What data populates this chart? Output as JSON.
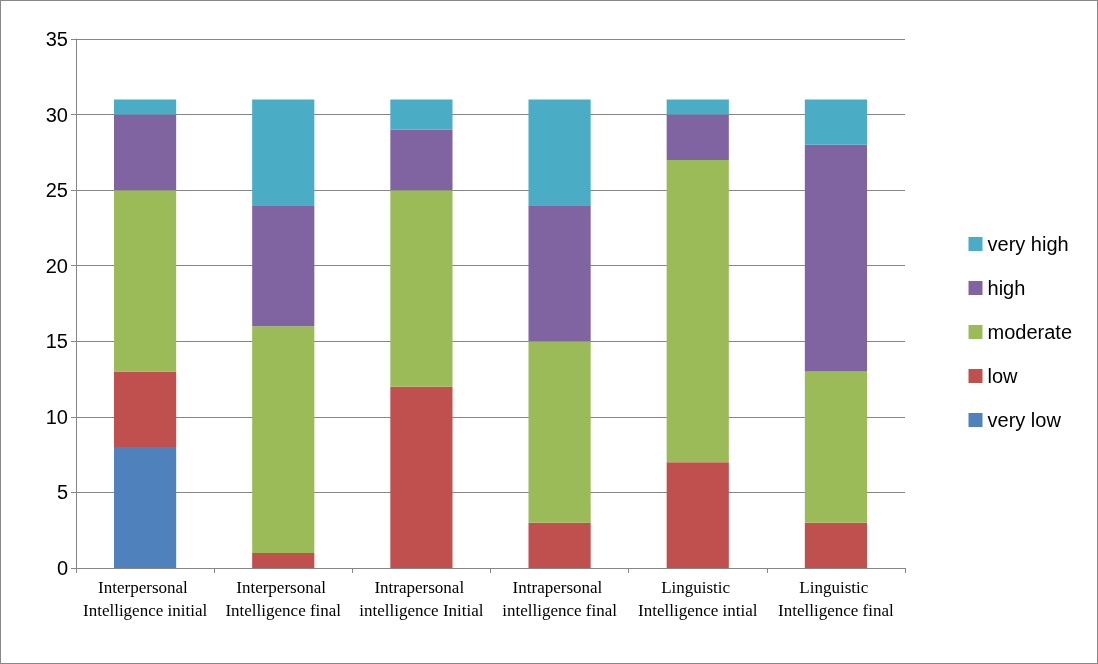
{
  "chart_data": {
    "type": "bar",
    "stacked": true,
    "categories": [
      "Interpersonal Intelligence initial",
      "Interpersonal Intelligence final",
      "Intrapersonal intelligence Initial",
      "Intrapersonal intelligence final",
      "Linguistic Intelligence intial",
      "Linguistic Intelligence final"
    ],
    "series": [
      {
        "name": "very low",
        "color": "#4f81bd",
        "values": [
          8,
          0,
          0,
          0,
          0,
          0
        ]
      },
      {
        "name": "low",
        "color": "#c0504d",
        "values": [
          5,
          1,
          12,
          3,
          7,
          3
        ]
      },
      {
        "name": "moderate",
        "color": "#9bbb59",
        "values": [
          12,
          15,
          13,
          12,
          20,
          10
        ]
      },
      {
        "name": "high",
        "color": "#8064a2",
        "values": [
          5,
          8,
          4,
          9,
          3,
          15
        ]
      },
      {
        "name": "very high",
        "color": "#4bacc6",
        "values": [
          1,
          7,
          2,
          7,
          1,
          3
        ]
      }
    ],
    "ylim": [
      0,
      35
    ],
    "yticks": [
      0,
      5,
      10,
      15,
      20,
      25,
      30,
      35
    ],
    "grid": "y",
    "legend": "right"
  }
}
